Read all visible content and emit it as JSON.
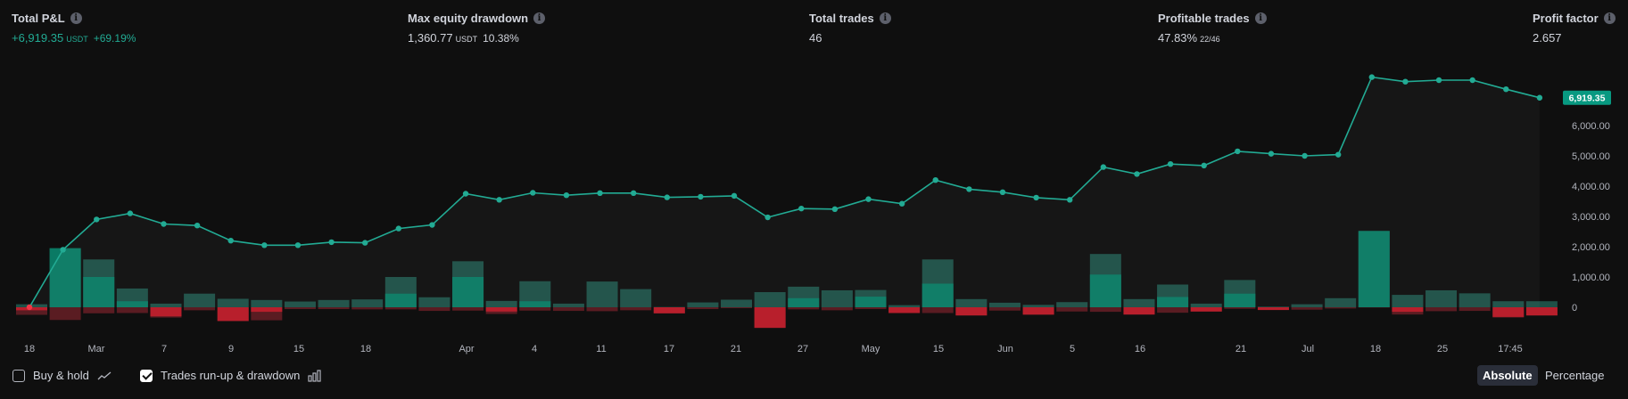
{
  "stats": [
    {
      "label": "Total P&L",
      "value": "+6,919.35",
      "unit": "USDT",
      "pct": "+69.19%",
      "positive": true
    },
    {
      "label": "Max equity drawdown",
      "value": "1,360.77",
      "unit": "USDT",
      "pct": "10.38%",
      "positive": false
    },
    {
      "label": "Total trades",
      "value": "46",
      "unit": "",
      "pct": "",
      "positive": false
    },
    {
      "label": "Profitable trades",
      "value": "47.83%",
      "unit": "22/46",
      "pct": "",
      "positive": false
    },
    {
      "label": "Profit factor",
      "value": "2.657",
      "unit": "",
      "pct": "",
      "positive": false
    }
  ],
  "footer": {
    "buy_hold_label": "Buy & hold",
    "runup_label": "Trades run-up & drawdown",
    "absolute_label": "Absolute",
    "percentage_label": "Percentage"
  },
  "colors": {
    "equity_line": "#22ab94",
    "runup_light": "#1d5047",
    "runup_dark": "#0a7a64",
    "drawdown_light": "#5a1c22",
    "drawdown_dark": "#b81f2c",
    "badge": "#089981"
  },
  "chart_data": {
    "type": "line+bar",
    "y_ticks": [
      "0",
      "1,000.00",
      "2,000.00",
      "3,000.00",
      "4,000.00",
      "5,000.00",
      "6,000.00"
    ],
    "ylim": [
      -800,
      7600
    ],
    "last_value_label": "6,919.35",
    "x_tick_labels": [
      "18",
      "Mar",
      "7",
      "9",
      "15",
      "18",
      "Apr",
      "4",
      "11",
      "17",
      "21",
      "27",
      "May",
      "15",
      "Jun",
      "5",
      "16",
      "21",
      "Jul",
      "18",
      "25",
      "17:45"
    ],
    "equity": [
      0,
      1900,
      2900,
      3100,
      2750,
      2700,
      2200,
      2050,
      2050,
      2150,
      2130,
      2600,
      2720,
      3750,
      3550,
      3780,
      3700,
      3770,
      3770,
      3630,
      3650,
      3680,
      2970,
      3260,
      3240,
      3570,
      3420,
      4200,
      3900,
      3800,
      3620,
      3550,
      4630,
      4400,
      4730,
      4680,
      5150,
      5070,
      5000,
      5040,
      7600,
      7450,
      7500,
      7500,
      7200,
      6919.35
    ],
    "runup": [
      100,
      1950,
      1580,
      620,
      120,
      450,
      280,
      240,
      190,
      240,
      260,
      1000,
      330,
      1520,
      210,
      860,
      120,
      850,
      600,
      10,
      160,
      250,
      500,
      680,
      560,
      570,
      70,
      1580,
      270,
      150,
      80,
      170,
      1760,
      270,
      750,
      120,
      900,
      20,
      100,
      300,
      2520,
      410,
      560,
      460,
      200,
      200
    ],
    "runup_profit": [
      0,
      1950,
      1000,
      200,
      0,
      0,
      0,
      0,
      0,
      0,
      0,
      450,
      0,
      1000,
      0,
      200,
      0,
      0,
      0,
      0,
      0,
      0,
      0,
      300,
      0,
      350,
      0,
      780,
      0,
      0,
      0,
      0,
      1080,
      0,
      340,
      0,
      450,
      0,
      0,
      0,
      2520,
      0,
      0,
      0,
      0,
      0
    ],
    "drawdown": [
      -250,
      -420,
      -200,
      -190,
      -340,
      -100,
      -460,
      -430,
      -60,
      -60,
      -70,
      -70,
      -120,
      -110,
      -220,
      -110,
      -120,
      -130,
      -100,
      -200,
      -60,
      -30,
      -680,
      -70,
      -100,
      -60,
      -190,
      -190,
      -270,
      -110,
      -250,
      -140,
      -150,
      -240,
      -180,
      -140,
      -50,
      -90,
      -80,
      -40,
      -10,
      -240,
      -130,
      -120,
      -340,
      -270
    ],
    "drawdown_loss": [
      -100,
      0,
      0,
      0,
      -300,
      0,
      -450,
      -150,
      0,
      0,
      0,
      0,
      0,
      0,
      -140,
      0,
      0,
      0,
      0,
      -200,
      0,
      0,
      -680,
      0,
      0,
      0,
      -190,
      0,
      -270,
      0,
      -240,
      0,
      0,
      -240,
      0,
      -140,
      0,
      -90,
      0,
      0,
      0,
      -150,
      0,
      0,
      -320,
      -270
    ]
  }
}
